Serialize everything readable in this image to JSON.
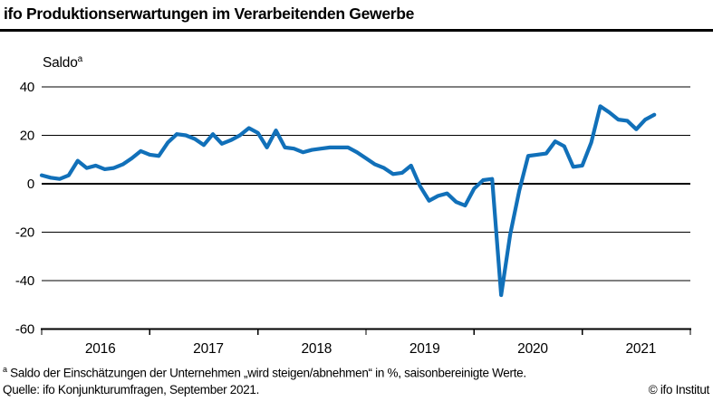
{
  "header": {
    "title": "ifo Produktionserwartungen im Verarbeitenden Gewerbe"
  },
  "chart_data": {
    "type": "line",
    "title": "ifo Produktionserwartungen im Verarbeitenden Gewerbe",
    "ylabel": "Saldo",
    "ylabel_sup": "a",
    "xlabel": "",
    "x_tick_labels": [
      "2016",
      "2017",
      "2018",
      "2019",
      "2020",
      "2021"
    ],
    "x_axis_months_total": 72,
    "x_start": "2016-01",
    "x_end": "2021-09",
    "ylim": [
      -60,
      40
    ],
    "yticks": [
      40,
      20,
      0,
      -20,
      -40,
      -60
    ],
    "grid": "horizontal",
    "legend_position": "none",
    "line_color": "#1170b9",
    "axis_color": "#000000",
    "series": [
      {
        "name": "Produktionserwartungen (Saldo, saisonbereinigt)",
        "frequency": "monthly",
        "values": [
          3.5,
          2.5,
          2,
          3.5,
          9.5,
          6.5,
          7.5,
          6,
          6.5,
          8,
          10.5,
          13.5,
          12,
          11.5,
          17,
          20.5,
          20,
          18.5,
          16,
          20.5,
          16.5,
          18,
          20,
          23,
          21,
          15,
          22,
          15,
          14.5,
          13,
          14,
          14.5,
          15,
          15,
          15,
          13,
          10.5,
          8,
          6.5,
          4,
          4.5,
          7.5,
          -1,
          -7,
          -5,
          -4,
          -7.5,
          -9,
          -2,
          1.5,
          2,
          -46,
          -21,
          -3,
          11.5,
          12,
          12.5,
          17.5,
          15.5,
          7,
          7.5,
          17,
          32,
          29.5,
          26.5,
          26,
          22.5,
          26.5,
          28.5
        ]
      }
    ]
  },
  "footnotes": {
    "marker": "a",
    "note": " Saldo der Einschätzungen der Unternehmen „wird steigen/abnehmen“ in %, saisonbereinigte Werte.",
    "source": "Quelle: ifo Konjunkturumfragen, September 2021.",
    "copyright": "© ifo Institut"
  }
}
